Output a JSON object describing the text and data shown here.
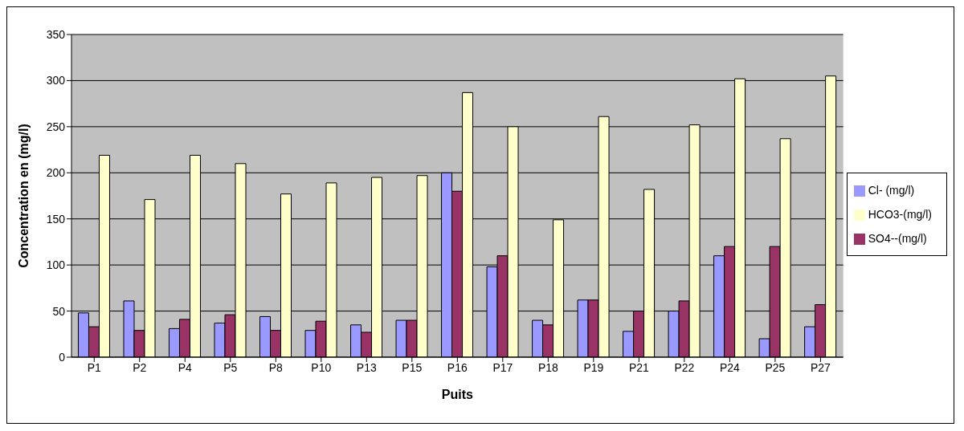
{
  "chart_data": {
    "type": "bar",
    "xlabel": "Puits",
    "ylabel": "Concentration en  (mg/l)",
    "categories": [
      "P1",
      "P2",
      "P4",
      "P5",
      "P8",
      "P10",
      "P13",
      "P15",
      "P16",
      "P17",
      "P18",
      "P19",
      "P21",
      "P22",
      "P24",
      "P25",
      "P27"
    ],
    "series": [
      {
        "name": "Cl- (mg/l)",
        "color": "#9999ff",
        "values": [
          48,
          61,
          31,
          37,
          44,
          29,
          35,
          40,
          200,
          98,
          40,
          62,
          28,
          50,
          110,
          20,
          33
        ]
      },
      {
        "name": "SO4--(mg/l)",
        "color": "#993366",
        "values": [
          33,
          29,
          41,
          46,
          29,
          39,
          27,
          40,
          180,
          110,
          35,
          62,
          50,
          61,
          120,
          120,
          57
        ]
      },
      {
        "name": "HCO3-(mg/l)",
        "color": "#ffffcc",
        "values": [
          219,
          171,
          219,
          210,
          177,
          189,
          195,
          197,
          287,
          250,
          149,
          261,
          182,
          252,
          302,
          237,
          305
        ]
      }
    ],
    "ylim": [
      0,
      350
    ],
    "yticks": [
      0,
      50,
      100,
      150,
      200,
      250,
      300,
      350
    ],
    "grid": "y",
    "legend": "right"
  }
}
